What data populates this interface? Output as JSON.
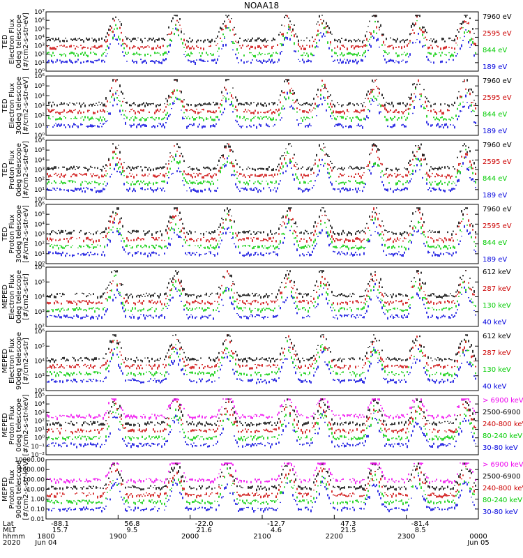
{
  "title": "NOAA18",
  "time_axis": {
    "rows": [
      {
        "label": "Lat",
        "values": [
          "-88.1",
          "56.8",
          "-22.0",
          "-12.7",
          "47.3",
          "-81.4"
        ]
      },
      {
        "label": "MLT",
        "values": [
          "15.7",
          "9.5",
          "21.6",
          "4.6",
          "21.5",
          "8.5"
        ]
      },
      {
        "label": "hhmm",
        "values": [
          "1800",
          "1900",
          "2000",
          "2100",
          "2200",
          "2300",
          "0000"
        ]
      },
      {
        "label": "2020",
        "values": [
          "Jun 04",
          "",
          "",
          "",
          "",
          "",
          "Jun 05"
        ]
      }
    ]
  },
  "chart_data": [
    {
      "type": "scatter",
      "ylabel": [
        "TED",
        "Electron Flux",
        "0deg telescope",
        "[#/cm2-s-str-eV]"
      ],
      "yscale": "log",
      "ylim": [
        1,
        10000000
      ],
      "yticks": [
        "10⁰",
        "10¹",
        "10²",
        "10³",
        "10⁴",
        "10⁵",
        "10⁶",
        "10⁷"
      ],
      "series": [
        {
          "name": "7960 eV",
          "color": "#000000"
        },
        {
          "name": "2595 eV",
          "color": "#cc0000"
        },
        {
          "name": "844 eV",
          "color": "#00cc00"
        },
        {
          "name": "189 eV",
          "color": "#0000dd"
        }
      ]
    },
    {
      "type": "scatter",
      "ylabel": [
        "TED",
        "Electron Flux",
        "30deg telescope",
        "[#/cm2-s-str-eV]"
      ],
      "yscale": "log",
      "ylim": [
        1,
        1000000
      ],
      "yticks": [
        "10⁰",
        "10¹",
        "10²",
        "10³",
        "10⁴",
        "10⁵",
        "10⁶"
      ],
      "series": [
        {
          "name": "7960 eV",
          "color": "#000000"
        },
        {
          "name": "2595 eV",
          "color": "#cc0000"
        },
        {
          "name": "844 eV",
          "color": "#00cc00"
        },
        {
          "name": "189 eV",
          "color": "#0000dd"
        }
      ]
    },
    {
      "type": "scatter",
      "ylabel": [
        "TED",
        "Proton Flux",
        "0deg telescope",
        "[#/cm2-s-str-eV]"
      ],
      "yscale": "log",
      "ylim": [
        1,
        1000000
      ],
      "yticks": [
        "10⁰",
        "10¹",
        "10²",
        "10³",
        "10⁴",
        "10⁵",
        "10⁶"
      ],
      "series": [
        {
          "name": "7960 eV",
          "color": "#000000"
        },
        {
          "name": "2595 eV",
          "color": "#cc0000"
        },
        {
          "name": "844 eV",
          "color": "#00cc00"
        },
        {
          "name": "189 eV",
          "color": "#0000dd"
        }
      ]
    },
    {
      "type": "scatter",
      "ylabel": [
        "TED",
        "Proton Flux",
        "30deg telescope",
        "[#/cm2-s-str-eV]"
      ],
      "yscale": "log",
      "ylim": [
        1,
        1000000
      ],
      "yticks": [
        "10⁰",
        "10¹",
        "10²",
        "10³",
        "10⁴",
        "10⁵",
        "10⁶"
      ],
      "series": [
        {
          "name": "7960 eV",
          "color": "#000000"
        },
        {
          "name": "2595 eV",
          "color": "#cc0000"
        },
        {
          "name": "844 eV",
          "color": "#00cc00"
        },
        {
          "name": "189 eV",
          "color": "#0000dd"
        }
      ]
    },
    {
      "type": "scatter",
      "ylabel": [
        "MEPED",
        "Electron Flux",
        "0deg telescope",
        "[#/cm2-s-str]"
      ],
      "yscale": "log",
      "ylim": [
        100,
        1000000
      ],
      "yticks": [
        "10²",
        "10³",
        "10⁴",
        "10⁵",
        "10⁶"
      ],
      "series": [
        {
          "name": "612 keV",
          "color": "#000000"
        },
        {
          "name": "287 keV",
          "color": "#cc0000"
        },
        {
          "name": "130 keV",
          "color": "#00cc00"
        },
        {
          "name": "40 keV",
          "color": "#0000dd"
        }
      ]
    },
    {
      "type": "scatter",
      "ylabel": [
        "MEPED",
        "Electron Flux",
        "90deg telescope",
        "[#/cm2-s-str]"
      ],
      "yscale": "log",
      "ylim": [
        100,
        1000000
      ],
      "yticks": [
        "10²",
        "10³",
        "10⁴",
        "10⁵",
        "10⁶"
      ],
      "series": [
        {
          "name": "612 keV",
          "color": "#000000"
        },
        {
          "name": "287 keV",
          "color": "#cc0000"
        },
        {
          "name": "130 keV",
          "color": "#00cc00"
        },
        {
          "name": "40 keV",
          "color": "#0000dd"
        }
      ]
    },
    {
      "type": "scatter",
      "ylabel": [
        "MEPED",
        "Proton Flux",
        "0deg telescope",
        "[#/cm2-s-str-keV]"
      ],
      "yscale": "log",
      "ylim": [
        0.01,
        100000
      ],
      "yticks": [
        "10⁻²",
        "10⁻¹",
        "10⁰",
        "10¹",
        "10²",
        "10³",
        "10⁴",
        "10⁵"
      ],
      "series": [
        {
          "name": "> 6900 keV",
          "color": "#ee00ee"
        },
        {
          "name": "2500-6900",
          "color": "#000000"
        },
        {
          "name": "240-800 keV",
          "color": "#cc0000"
        },
        {
          "name": "80-240 keV",
          "color": "#00cc00"
        },
        {
          "name": "30-80 keV",
          "color": "#0000dd"
        }
      ]
    },
    {
      "type": "scatter",
      "ylabel": [
        "MEPED",
        "Proton Flux",
        "90deg telescope",
        "[#/cm2-s-str-keV]"
      ],
      "yscale": "log",
      "ylim": [
        0.01,
        10000
      ],
      "yticks": [
        "0.01",
        "0.10",
        "1.00",
        "10.00",
        "100.00",
        "1000.00",
        "10000.00"
      ],
      "series": [
        {
          "name": "> 6900 keV",
          "color": "#ee00ee"
        },
        {
          "name": "2500-6900",
          "color": "#000000"
        },
        {
          "name": "240-800 keV",
          "color": "#cc0000"
        },
        {
          "name": "80-240 keV",
          "color": "#00cc00"
        },
        {
          "name": "30-80 keV",
          "color": "#0000dd"
        }
      ]
    }
  ]
}
